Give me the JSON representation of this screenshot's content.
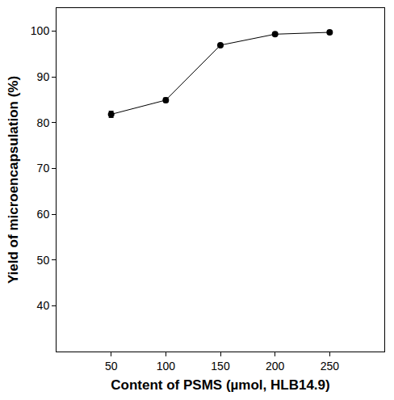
{
  "chart_data": {
    "type": "line",
    "x_label": "Content of PSMS (µmol, HLB14.9)",
    "y_label": "Yield of microencapsulation (%)",
    "x": [
      50,
      100,
      150,
      200,
      250
    ],
    "values": [
      81.8,
      84.9,
      96.9,
      99.3,
      99.7
    ],
    "errors": [
      0.7,
      0.5,
      0.3,
      0.2,
      0.2
    ],
    "color": "#000000",
    "marker": "circle",
    "xlim": [
      0,
      300
    ],
    "xticks": [
      50,
      100,
      150,
      200,
      250
    ],
    "ylim": [
      30,
      105
    ],
    "yticks": [
      40,
      50,
      60,
      70,
      80,
      90,
      100
    ],
    "grid": false
  }
}
